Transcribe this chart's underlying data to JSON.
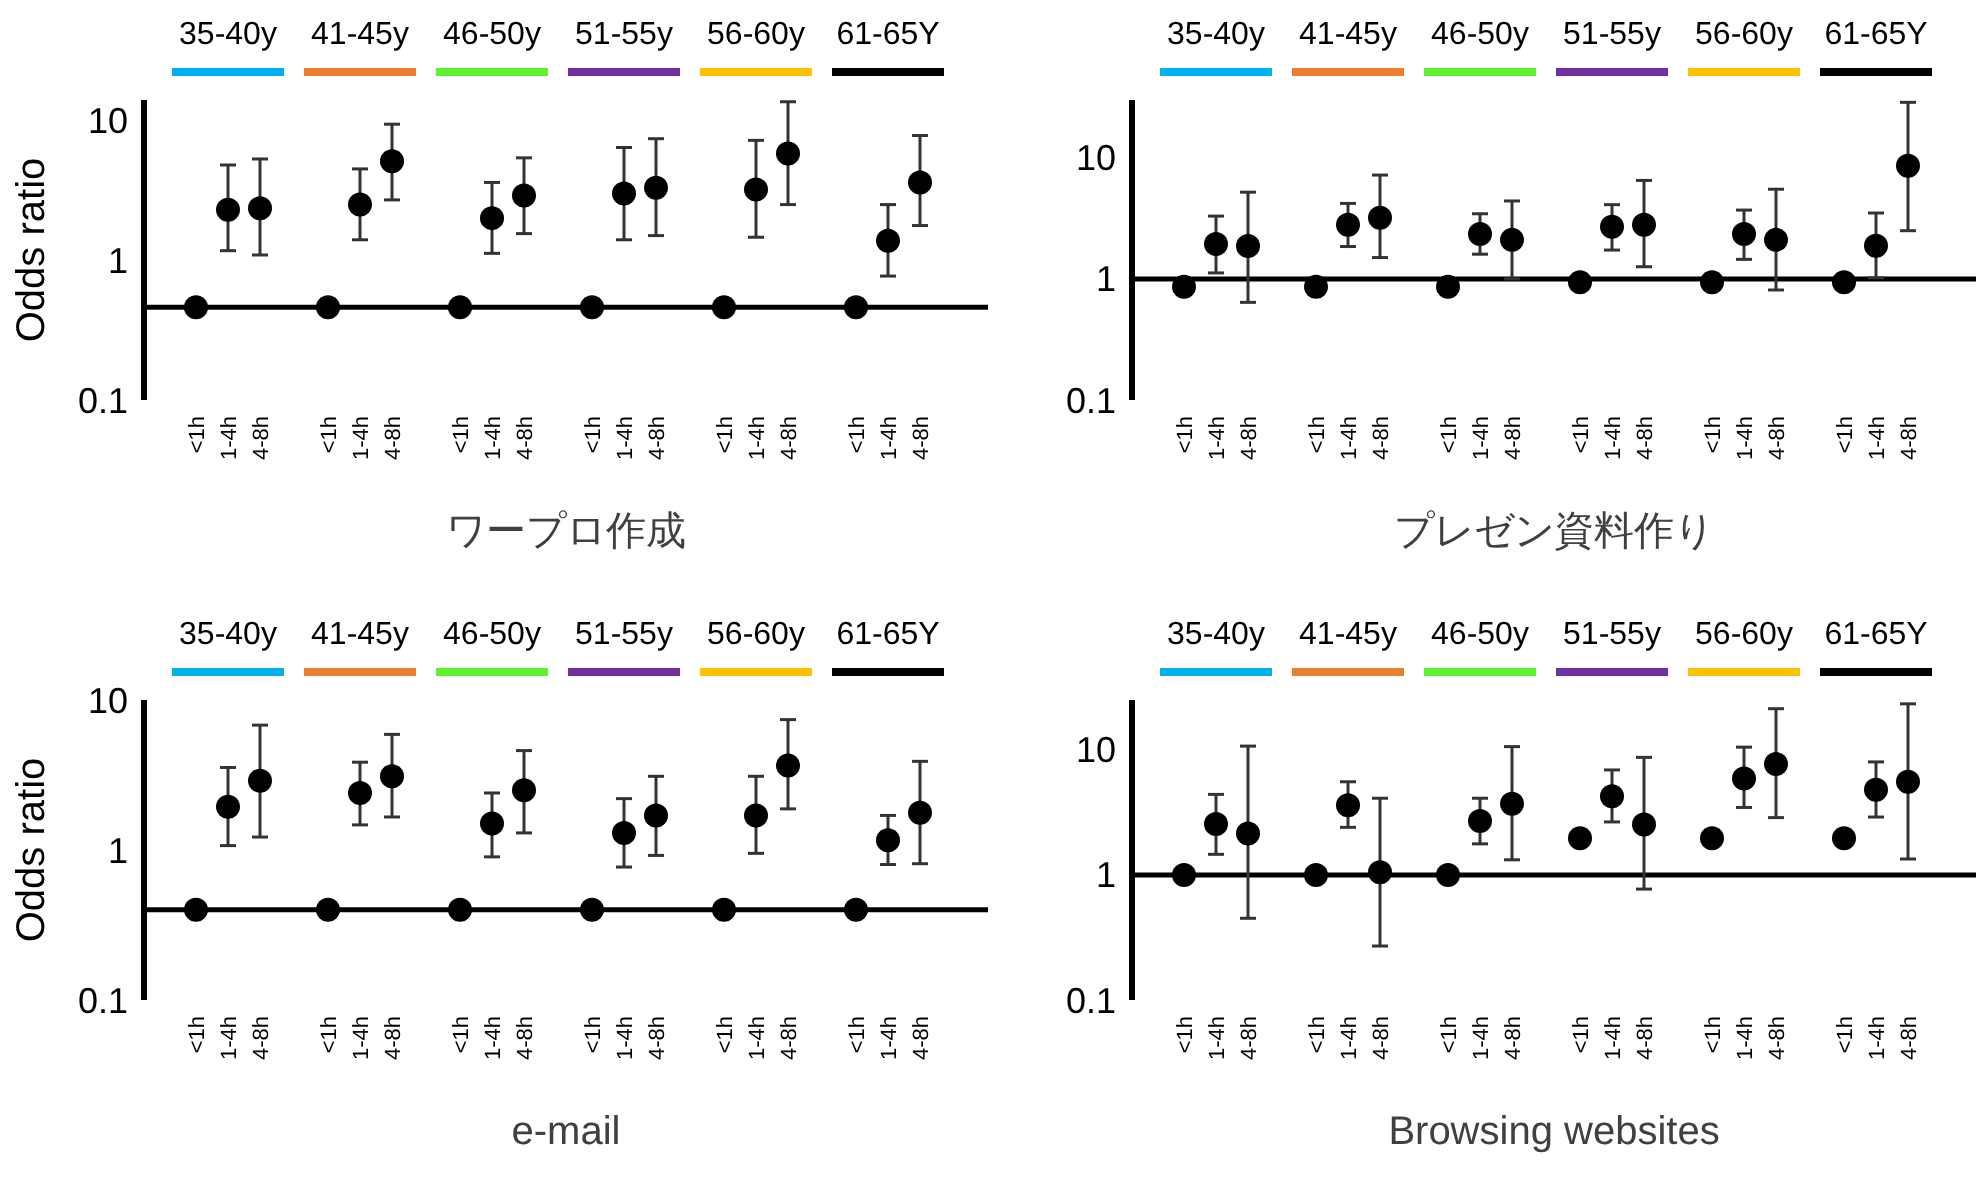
{
  "chart_data": [
    {
      "type": "scatter",
      "xlabel": "ワープロ作成",
      "ylabel": "Odds ratio",
      "log": true,
      "marker": "circle",
      "ylim": [
        0.1,
        14
      ],
      "yticks": [
        0.1,
        1,
        10
      ],
      "categories": [
        "<1h",
        "1-4h",
        "4-8h",
        "<1h",
        "1-4h",
        "4-8h",
        "<1h",
        "1-4h",
        "4-8h",
        "<1h",
        "1-4h",
        "4-8h",
        "<1h",
        "1-4h",
        "4-8h",
        "<1h",
        "1-4h",
        "4-8h"
      ],
      "series": [
        {
          "color": "#000000",
          "values": [
            0.46,
            2.3,
            2.35,
            0.46,
            2.5,
            5.1,
            0.46,
            2.0,
            2.9,
            0.46,
            3.0,
            3.3,
            0.46,
            3.2,
            5.8,
            0.46,
            1.38,
            3.6
          ],
          "errors": [
            null,
            [
              1.17,
              4.8
            ],
            [
              1.09,
              5.3
            ],
            null,
            [
              1.4,
              4.5
            ],
            [
              2.7,
              9.4
            ],
            null,
            [
              1.12,
              3.6
            ],
            [
              1.55,
              5.4
            ],
            null,
            [
              1.4,
              6.4
            ],
            [
              1.5,
              7.4
            ],
            null,
            [
              1.46,
              7.2
            ],
            [
              2.5,
              13.6
            ],
            null,
            [
              0.77,
              2.5
            ],
            [
              1.77,
              7.8
            ]
          ]
        }
      ],
      "ref_lines": [
        {
          "axis": "y",
          "value": 0.46,
          "color": "#000000"
        }
      ],
      "annotations": [
        "35-40y",
        "41-45y",
        "46-50y",
        "51-55y",
        "56-60y",
        "61-65Y"
      ]
    },
    {
      "type": "scatter",
      "xlabel": "プレゼン資料作り",
      "log": true,
      "marker": "circle",
      "ylim": [
        0.1,
        30
      ],
      "yticks": [
        0.1,
        1,
        10
      ],
      "categories": [
        "<1h",
        "1-4h",
        "4-8h",
        "<1h",
        "1-4h",
        "4-8h",
        "<1h",
        "1-4h",
        "4-8h",
        "<1h",
        "1-4h",
        "4-8h",
        "<1h",
        "1-4h",
        "4-8h",
        "<1h",
        "1-4h",
        "4-8h"
      ],
      "series": [
        {
          "color": "#000000",
          "values": [
            0.86,
            1.94,
            1.87,
            0.86,
            2.8,
            3.2,
            0.86,
            2.35,
            2.1,
            0.94,
            2.7,
            2.8,
            0.94,
            2.35,
            2.1,
            0.94,
            1.88,
            8.6
          ],
          "errors": [
            null,
            [
              1.12,
              3.3
            ],
            [
              0.64,
              5.2
            ],
            null,
            [
              1.85,
              4.2
            ],
            [
              1.5,
              7.2
            ],
            null,
            [
              1.6,
              3.45
            ],
            [
              1.0,
              4.4
            ],
            null,
            [
              1.73,
              4.1
            ],
            [
              1.26,
              6.5
            ],
            null,
            [
              1.45,
              3.7
            ],
            [
              0.81,
              5.5
            ],
            null,
            [
              1.02,
              3.5
            ],
            [
              2.5,
              28.7
            ]
          ]
        }
      ],
      "ref_lines": [
        {
          "axis": "y",
          "value": 1,
          "color": "#000000"
        }
      ],
      "annotations": [
        "35-40y",
        "41-45y",
        "46-50y",
        "51-55y",
        "56-60y",
        "61-65Y"
      ]
    },
    {
      "type": "scatter",
      "xlabel": "e-mail",
      "ylabel": "Odds ratio",
      "log": true,
      "marker": "circle",
      "ylim": [
        0.1,
        10
      ],
      "yticks": [
        0.1,
        1,
        10
      ],
      "categories": [
        "<1h",
        "1-4h",
        "4-8h",
        "<1h",
        "1-4h",
        "4-8h",
        "<1h",
        "1-4h",
        "4-8h",
        "<1h",
        "1-4h",
        "4-8h",
        "<1h",
        "1-4h",
        "4-8h",
        "<1h",
        "1-4h",
        "4-8h"
      ],
      "series": [
        {
          "color": "#000000",
          "values": [
            0.4,
            1.94,
            2.9,
            0.4,
            2.4,
            3.1,
            0.4,
            1.5,
            2.5,
            0.4,
            1.3,
            1.7,
            0.4,
            1.7,
            3.66,
            0.4,
            1.16,
            1.77
          ],
          "errors": [
            null,
            [
              1.07,
              3.55
            ],
            [
              1.22,
              6.8
            ],
            null,
            [
              1.47,
              3.85
            ],
            [
              1.66,
              5.9
            ],
            null,
            [
              0.9,
              2.4
            ],
            [
              1.3,
              4.6
            ],
            null,
            [
              0.77,
              2.2
            ],
            [
              0.92,
              3.1
            ],
            null,
            [
              0.95,
              3.1
            ],
            [
              1.88,
              7.4
            ],
            null,
            [
              0.8,
              1.7
            ],
            [
              0.81,
              3.9
            ]
          ]
        }
      ],
      "ref_lines": [
        {
          "axis": "y",
          "value": 0.4,
          "color": "#000000"
        }
      ],
      "annotations": [
        "35-40y",
        "41-45y",
        "46-50y",
        "51-55y",
        "56-60y",
        "61-65Y"
      ]
    },
    {
      "type": "scatter",
      "xlabel": "Browsing websites",
      "log": true,
      "marker": "circle",
      "ylim": [
        0.1,
        25
      ],
      "yticks": [
        0.1,
        1,
        10
      ],
      "categories": [
        "<1h",
        "1-4h",
        "4-8h",
        "<1h",
        "1-4h",
        "4-8h",
        "<1h",
        "1-4h",
        "4-8h",
        "<1h",
        "1-4h",
        "4-8h",
        "<1h",
        "1-4h",
        "4-8h",
        "<1h",
        "1-4h",
        "4-8h"
      ],
      "series": [
        {
          "color": "#000000",
          "values": [
            1,
            2.55,
            2.14,
            1,
            3.6,
            1.05,
            1,
            2.7,
            3.7,
            1.96,
            4.26,
            2.53,
            1.96,
            5.9,
            7.7,
            1.96,
            4.8,
            5.55
          ],
          "errors": [
            null,
            [
              1.46,
              4.4
            ],
            [
              0.45,
              10.7
            ],
            null,
            [
              2.4,
              5.55
            ],
            [
              0.27,
              4.1
            ],
            null,
            [
              1.77,
              4.1
            ],
            [
              1.32,
              10.6
            ],
            null,
            [
              2.65,
              6.9
            ],
            [
              0.77,
              8.7
            ],
            null,
            [
              3.46,
              10.5
            ],
            [
              2.87,
              21.3
            ],
            null,
            [
              2.9,
              8.0
            ],
            [
              1.34,
              23.3
            ]
          ]
        }
      ],
      "ref_lines": [
        {
          "axis": "y",
          "value": 1,
          "color": "#000000"
        }
      ],
      "annotations": [
        "35-40y",
        "41-45y",
        "46-50y",
        "51-55y",
        "56-60y",
        "61-65Y"
      ]
    }
  ]
}
